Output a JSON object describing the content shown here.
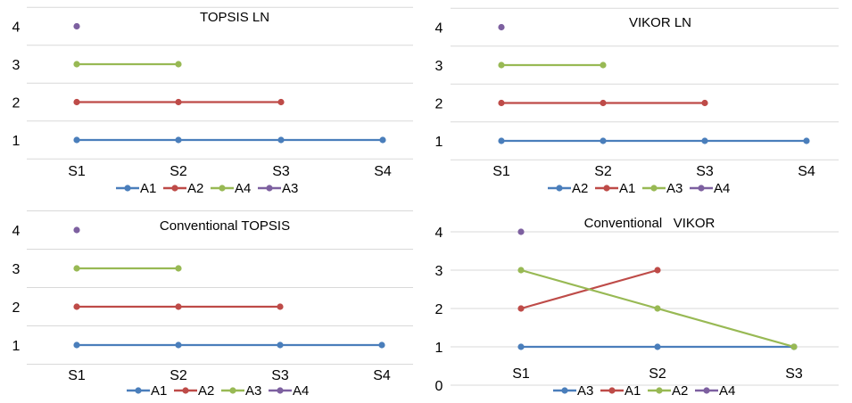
{
  "chart_data": [
    {
      "type": "line",
      "title": "TOPSIS LN",
      "categories": [
        "S1",
        "S2",
        "S3",
        "S4"
      ],
      "yticks": [
        "1",
        "2",
        "3",
        "4"
      ],
      "ylim": [
        0.5,
        4.5
      ],
      "grid": true,
      "legend": "bottom",
      "series": [
        {
          "name": "A1",
          "color": "#4a7ebb",
          "values": [
            1,
            1,
            1,
            1
          ]
        },
        {
          "name": "A2",
          "color": "#be4b48",
          "values": [
            2,
            2,
            2,
            null
          ]
        },
        {
          "name": "A4",
          "color": "#98b954",
          "values": [
            3,
            3,
            null,
            null
          ]
        },
        {
          "name": "A3",
          "color": "#7d60a0",
          "values": [
            4,
            null,
            null,
            null
          ]
        }
      ]
    },
    {
      "type": "line",
      "title": "VIKOR LN",
      "categories": [
        "S1",
        "S2",
        "S3",
        "S4"
      ],
      "yticks": [
        "1",
        "2",
        "3",
        "4"
      ],
      "ylim": [
        0.5,
        4.5
      ],
      "grid": true,
      "legend": "bottom",
      "series": [
        {
          "name": "A2",
          "color": "#4a7ebb",
          "values": [
            1,
            1,
            1,
            1
          ]
        },
        {
          "name": "A1",
          "color": "#be4b48",
          "values": [
            2,
            2,
            2,
            null
          ]
        },
        {
          "name": "A3",
          "color": "#98b954",
          "values": [
            3,
            3,
            null,
            null
          ]
        },
        {
          "name": "A4",
          "color": "#7d60a0",
          "values": [
            4,
            null,
            null,
            null
          ]
        }
      ]
    },
    {
      "type": "line",
      "title": "Conventional TOPSIS",
      "categories": [
        "S1",
        "S2",
        "S3",
        "S4"
      ],
      "yticks": [
        "1",
        "2",
        "3",
        "4"
      ],
      "ylim": [
        0.5,
        4.5
      ],
      "grid": true,
      "legend": "bottom",
      "series": [
        {
          "name": "A1",
          "color": "#4a7ebb",
          "values": [
            1,
            1,
            1,
            1
          ]
        },
        {
          "name": "A2",
          "color": "#be4b48",
          "values": [
            2,
            2,
            2,
            null
          ]
        },
        {
          "name": "A3",
          "color": "#98b954",
          "values": [
            3,
            3,
            null,
            null
          ]
        },
        {
          "name": "A4",
          "color": "#7d60a0",
          "values": [
            4,
            null,
            null,
            null
          ]
        }
      ]
    },
    {
      "type": "line",
      "title": "Conventional   VIKOR",
      "categories": [
        "S1",
        "S2",
        "S3"
      ],
      "yticks": [
        "0",
        "1",
        "2",
        "3",
        "4"
      ],
      "ylim": [
        0,
        4
      ],
      "grid": true,
      "legend": "bottom",
      "series": [
        {
          "name": "A3",
          "color": "#4a7ebb",
          "values": [
            1,
            1,
            1
          ]
        },
        {
          "name": "A1",
          "color": "#be4b48",
          "values": [
            2,
            3,
            null
          ]
        },
        {
          "name": "A2",
          "color": "#98b954",
          "values": [
            3,
            2,
            1
          ]
        },
        {
          "name": "A4",
          "color": "#7d60a0",
          "values": [
            4,
            null,
            null
          ]
        }
      ]
    }
  ]
}
